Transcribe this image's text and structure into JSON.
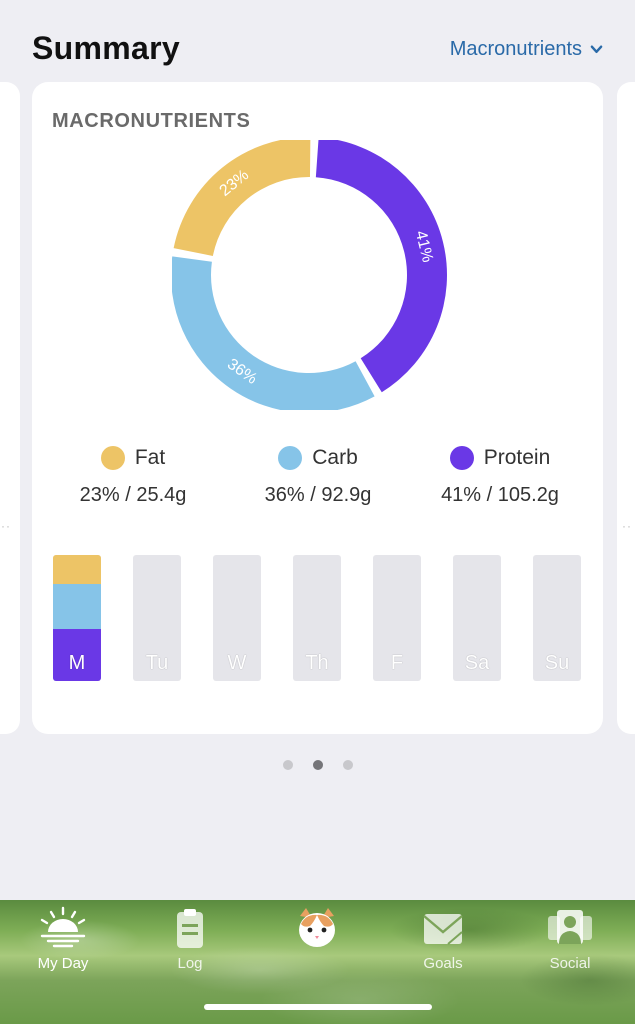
{
  "header": {
    "title": "Summary",
    "selector_label": "Macronutrients"
  },
  "card": {
    "title": "MACRONUTRIENTS"
  },
  "colors": {
    "fat": "#edc466",
    "carb": "#86c4e8",
    "protein": "#6a38e6",
    "empty_bar": "#e5e5ea"
  },
  "chart_data": {
    "type": "pie",
    "title": "MACRONUTRIENTS",
    "series": [
      {
        "name": "Protein",
        "percent": 41,
        "label": "41%"
      },
      {
        "name": "Carb",
        "percent": 36,
        "label": "36%"
      },
      {
        "name": "Fat",
        "percent": 23,
        "label": "23%"
      }
    ]
  },
  "legend": [
    {
      "name": "Fat",
      "value": "23% / 25.4g",
      "color": "#edc466"
    },
    {
      "name": "Carb",
      "value": "36% / 92.9g",
      "color": "#86c4e8"
    },
    {
      "name": "Protein",
      "value": "41% / 105.2g",
      "color": "#6a38e6"
    }
  ],
  "week": [
    {
      "label": "M",
      "fat": 23,
      "carb": 36,
      "protein": 41
    },
    {
      "label": "Tu"
    },
    {
      "label": "W"
    },
    {
      "label": "Th"
    },
    {
      "label": "F"
    },
    {
      "label": "Sa"
    },
    {
      "label": "Su"
    }
  ],
  "pager": {
    "count": 3,
    "active": 1
  },
  "tabbar": {
    "items": [
      {
        "label": "My Day",
        "icon": "sunrise-icon",
        "active": true
      },
      {
        "label": "Log",
        "icon": "clipboard-icon",
        "active": false
      },
      {
        "label": "",
        "icon": "cat-avatar-icon",
        "active": false
      },
      {
        "label": "Goals",
        "icon": "envelope-goals-icon",
        "active": false
      },
      {
        "label": "Social",
        "icon": "people-icon",
        "active": false
      }
    ]
  }
}
